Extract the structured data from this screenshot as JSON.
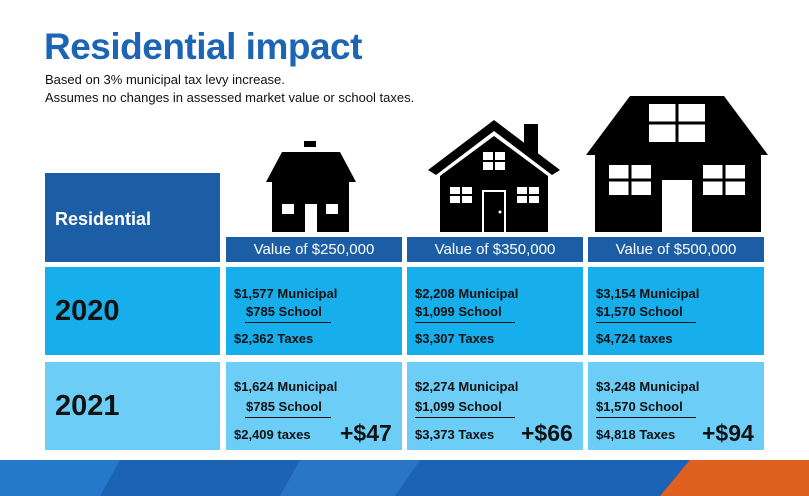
{
  "title": "Residential impact",
  "notes": [
    "Based on 3% municipal tax levy increase.",
    "Assumes no changes in assessed market value or school taxes."
  ],
  "table": {
    "corner": "Residential",
    "columns": [
      "Value of $250,000",
      "Value of $350,000",
      "Value of $500,000"
    ],
    "rows": [
      {
        "year": "2020",
        "cells": [
          {
            "municipal": "$1,577 Municipal",
            "school": "$785 School",
            "total": "$2,362 Taxes"
          },
          {
            "municipal": "$2,208 Municipal",
            "school": "$1,099 School",
            "total": "$3,307 Taxes"
          },
          {
            "municipal": "$3,154 Municipal",
            "school": "$1,570 School",
            "total": "$4,724 taxes"
          }
        ]
      },
      {
        "year": "2021",
        "cells": [
          {
            "municipal": "$1,624 Municipal",
            "school": "$785 School",
            "total": "$2,409 taxes",
            "change": "+$47"
          },
          {
            "municipal": "$2,274 Municipal",
            "school": "$1,099 School",
            "total": "$3,373 Taxes",
            "change": "+$66"
          },
          {
            "municipal": "$3,248 Municipal",
            "school": "$1,570 School",
            "total": "$4,818 Taxes",
            "change": "+$94"
          }
        ]
      }
    ]
  }
}
